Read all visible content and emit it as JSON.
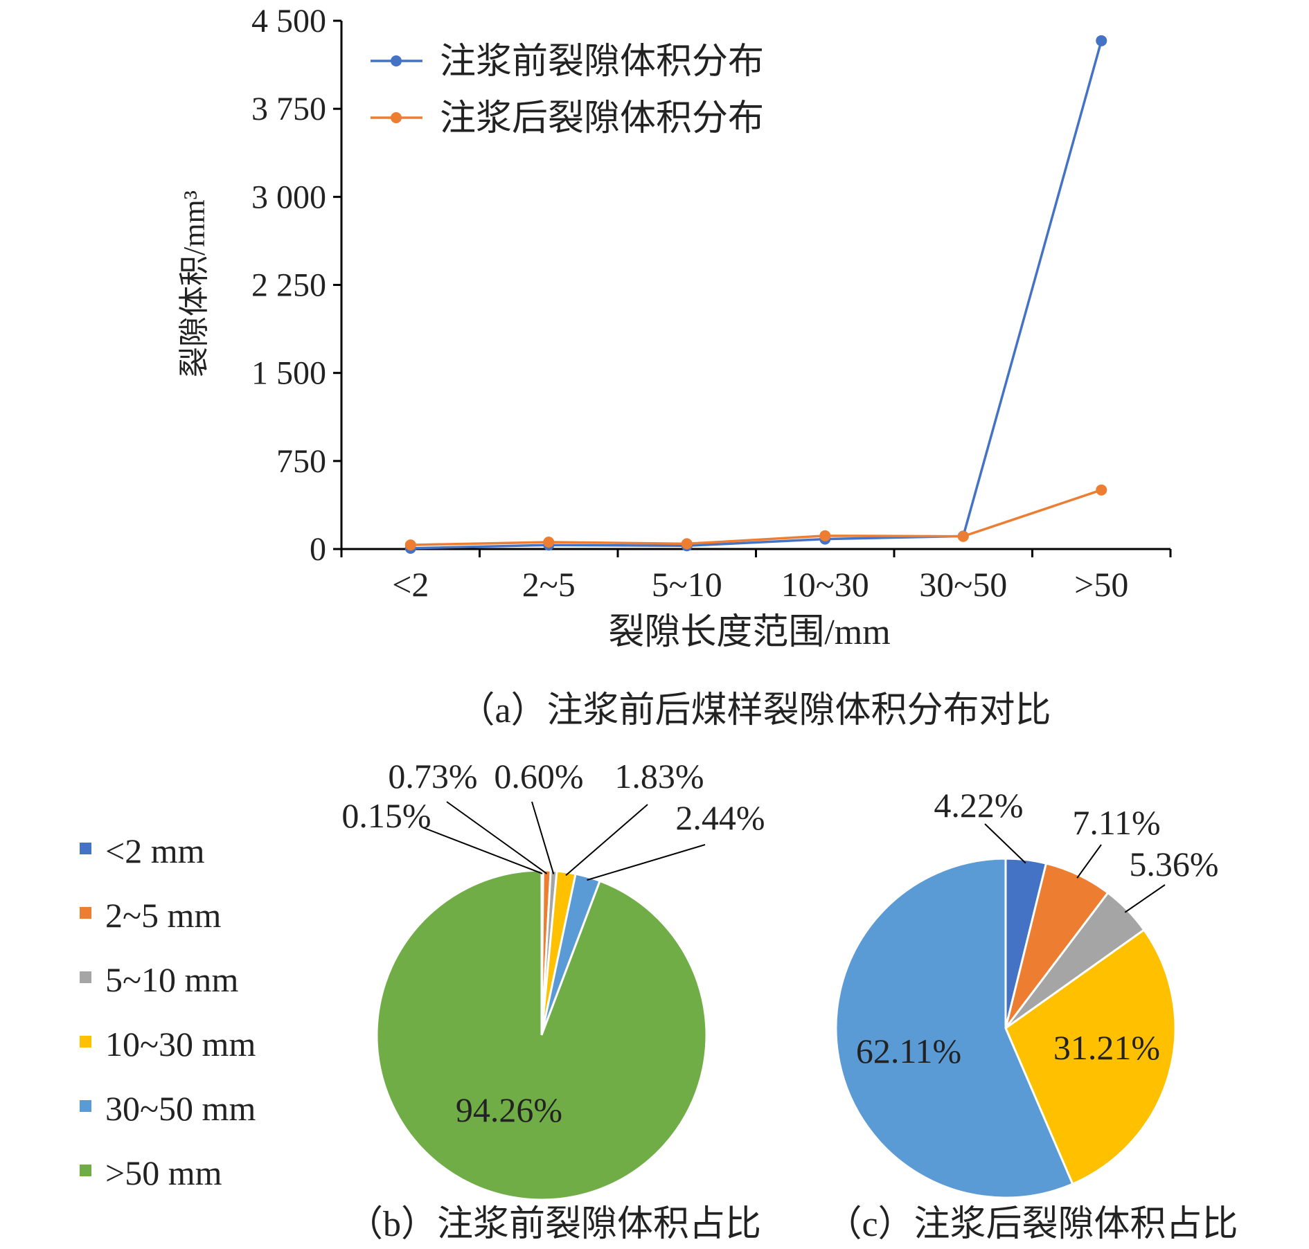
{
  "chart_data": [
    {
      "type": "line",
      "caption": "（a）注浆前后煤样裂隙体积分布对比",
      "xlabel": "裂隙长度范围/mm",
      "ylabel": "裂隙体积/mm³",
      "categories": [
        "<2",
        "2~5",
        "5~10",
        "10~30",
        "30~50",
        ">50"
      ],
      "ylim": [
        0,
        4500
      ],
      "yticks": [
        0,
        750,
        1500,
        2250,
        3000,
        3750,
        4500
      ],
      "ytick_labels": [
        "0",
        "750",
        "1 500",
        "2 250",
        "3 000",
        "3 750",
        "4 500"
      ],
      "legend_position": "top-left",
      "grid": false,
      "series": [
        {
          "name": "注浆前裂隙体积分布",
          "color": "#4472C4",
          "values": [
            7,
            34,
            28,
            85,
            110,
            4330
          ]
        },
        {
          "name": "注浆后裂隙体积分布",
          "color": "#ED7D31",
          "values": [
            35,
            59,
            45,
            113,
            108,
            503
          ]
        }
      ]
    },
    {
      "type": "pie",
      "caption": "（b）注浆前裂隙体积占比",
      "labels": [
        "<2 mm",
        "2~5 mm",
        "5~10 mm",
        "10~30 mm",
        "30~50 mm",
        ">50 mm"
      ],
      "values": [
        0.15,
        0.73,
        0.6,
        1.83,
        2.44,
        94.26
      ],
      "value_labels": [
        "0.15%",
        "0.73%",
        "0.60%",
        "1.83%",
        "2.44%",
        "94.26%"
      ]
    },
    {
      "type": "pie",
      "caption": "（c）注浆后裂隙体积占比",
      "labels": [
        "<2 mm",
        "2~5 mm",
        "5~10 mm",
        "10~30 mm",
        "30~50 mm",
        ">50 mm"
      ],
      "values": [
        4.22,
        7.11,
        5.36,
        31.21,
        62.11,
        0
      ],
      "value_labels": [
        "4.22%",
        "7.11%",
        "5.36%",
        "31.21%",
        "62.11%",
        ""
      ]
    }
  ],
  "pie_legend": {
    "items": [
      "<2 mm",
      "2~5 mm",
      "5~10 mm",
      "10~30 mm",
      "30~50 mm",
      ">50 mm"
    ],
    "colors": [
      "#4472C4",
      "#ED7D31",
      "#A5A5A5",
      "#FFC000",
      "#5B9BD5",
      "#70AD47"
    ]
  }
}
